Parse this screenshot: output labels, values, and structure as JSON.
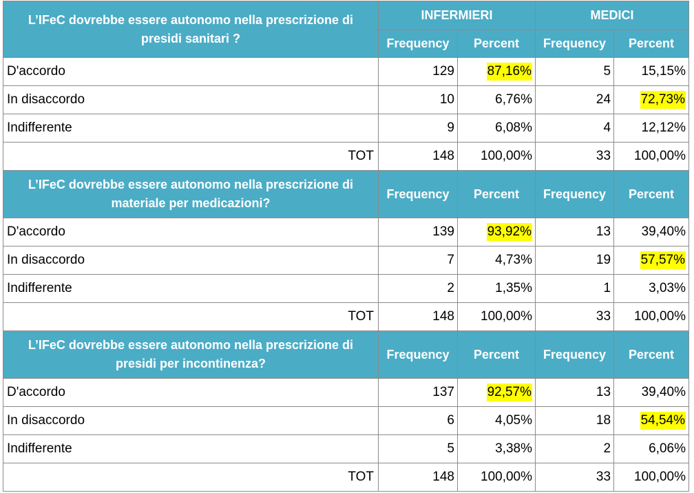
{
  "groups": {
    "infermieri": "INFERMIERI",
    "medici": "MEDICI"
  },
  "colheaders": {
    "frequency": "Frequency",
    "percent": "Percent"
  },
  "highlight_color": "#ffff00",
  "header_color": "#4bacc6",
  "sections": [
    {
      "question": "L’IFeC  dovrebbe essere autonomo nella prescrizione di presidi sanitari ?",
      "rows": [
        {
          "label": "D'accordo",
          "inf_freq": "129",
          "inf_pct": "87,16%",
          "med_freq": "5",
          "med_pct": "15,15%"
        },
        {
          "label": "In disaccordo",
          "inf_freq": "10",
          "inf_pct": "6,76%",
          "med_freq": "24",
          "med_pct": "72,73%"
        },
        {
          "label": "Indifferente",
          "inf_freq": "9",
          "inf_pct": "6,08%",
          "med_freq": "4",
          "med_pct": "12,12%"
        }
      ],
      "total": {
        "label": "TOT",
        "inf_freq": "148",
        "inf_pct": "100,00%",
        "med_freq": "33",
        "med_pct": "100,00%"
      },
      "highlighted": [
        "0.inf_pct",
        "1.med_pct"
      ]
    },
    {
      "question": "L’IFeC dovrebbe essere autonomo nella prescrizione di materiale per medicazioni?",
      "rows": [
        {
          "label": "D'accordo",
          "inf_freq": "139",
          "inf_pct": "93,92%",
          "med_freq": "13",
          "med_pct": "39,40%"
        },
        {
          "label": "In disaccordo",
          "inf_freq": "7",
          "inf_pct": "4,73%",
          "med_freq": "19",
          "med_pct": "57,57%"
        },
        {
          "label": "Indifferente",
          "inf_freq": "2",
          "inf_pct": "1,35%",
          "med_freq": "1",
          "med_pct": "3,03%"
        }
      ],
      "total": {
        "label": "TOT",
        "inf_freq": "148",
        "inf_pct": "100,00%",
        "med_freq": "33",
        "med_pct": "100,00%"
      },
      "highlighted": [
        "0.inf_pct",
        "1.med_pct"
      ]
    },
    {
      "question": "L’IFeC dovrebbe essere autonomo nella prescrizione di presidi per incontinenza?",
      "rows": [
        {
          "label": "D'accordo",
          "inf_freq": "137",
          "inf_pct": "92,57%",
          "med_freq": "13",
          "med_pct": "39,40%"
        },
        {
          "label": "In disaccordo",
          "inf_freq": "6",
          "inf_pct": "4,05%",
          "med_freq": "18",
          "med_pct": "54,54%"
        },
        {
          "label": "Indifferente",
          "inf_freq": "5",
          "inf_pct": "3,38%",
          "med_freq": "2",
          "med_pct": "6,06%"
        }
      ],
      "total": {
        "label": "TOT",
        "inf_freq": "148",
        "inf_pct": "100,00%",
        "med_freq": "33",
        "med_pct": "100,00%"
      },
      "highlighted": [
        "0.inf_pct",
        "1.med_pct"
      ]
    }
  ]
}
